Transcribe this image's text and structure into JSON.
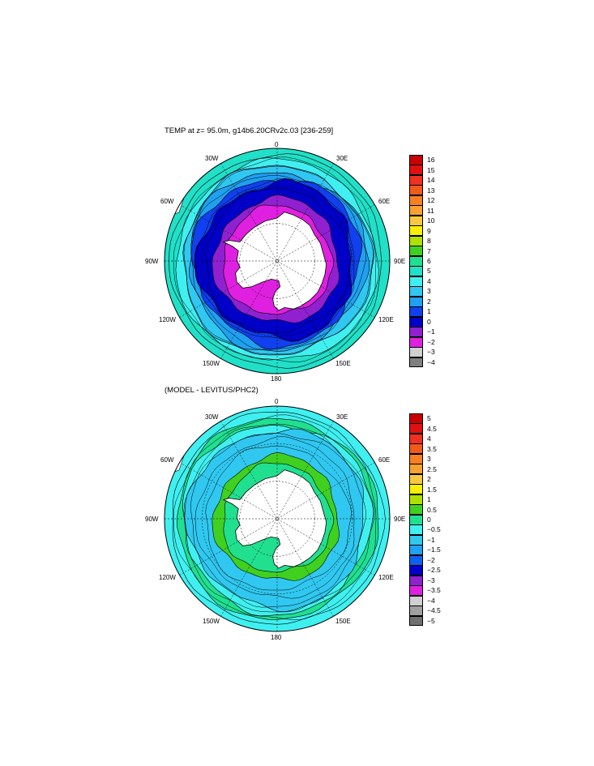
{
  "panels": [
    {
      "title": "TEMP at z=  95.0m, g14b6.20CRv2c.03 [236-259]",
      "lon_labels": {
        "top": "0",
        "bottom": "180",
        "left": "90W",
        "right": "90E",
        "upper_left_1": "30W",
        "upper_left_2": "60W",
        "lower_left_1": "120W",
        "lower_left_2": "150W",
        "upper_right_1": "30E",
        "upper_right_2": "60E",
        "lower_right_1": "120E",
        "lower_right_2": "150E"
      },
      "colorbar": {
        "labels": [
          "16",
          "15",
          "14",
          "13",
          "12",
          "11",
          "10",
          "9",
          "8",
          "7",
          "6",
          "5",
          "4",
          "3",
          "2",
          "1",
          "0",
          "−1",
          "−2",
          "−3",
          "−4"
        ],
        "colors": [
          "#c80000",
          "#e01010",
          "#f03020",
          "#f05a1a",
          "#f88020",
          "#f8a030",
          "#f8c840",
          "#f8f000",
          "#b0e000",
          "#40d020",
          "#20e090",
          "#20e0c8",
          "#40f0f0",
          "#30c8f0",
          "#20a0f0",
          "#1040f0",
          "#0000c8",
          "#9020d0",
          "#e020e0",
          "#d0d0d0",
          "#808080"
        ],
        "range": [
          -4,
          16
        ]
      },
      "ring_colors": [
        "#0000c8",
        "#1040f0",
        "#20a0f0",
        "#30c8f0",
        "#40f0f0",
        "#20e0c8"
      ],
      "inner_color": "#e020e0",
      "band_color": "#9020d0"
    },
    {
      "title": "(MODEL - LEVITUS/PHC2)",
      "lon_labels": {
        "top": "0",
        "bottom": "180",
        "left": "90W",
        "right": "90E",
        "upper_left_1": "30W",
        "upper_left_2": "60W",
        "lower_left_1": "120W",
        "lower_left_2": "150W",
        "upper_right_1": "30E",
        "upper_right_2": "60E",
        "lower_right_1": "120E",
        "lower_right_2": "150E"
      },
      "colorbar": {
        "labels": [
          "5",
          "4.5",
          "4",
          "3.5",
          "3",
          "2.5",
          "2",
          "1.5",
          "1",
          "0.5",
          "0",
          "−0.5",
          "−1",
          "−1.5",
          "−2",
          "−2.5",
          "−3",
          "−3.5",
          "−4",
          "−4.5",
          "−5"
        ],
        "colors": [
          "#c80000",
          "#e01010",
          "#f03020",
          "#f05a1a",
          "#f88020",
          "#f8a030",
          "#f8c840",
          "#f8f000",
          "#b0e000",
          "#40d020",
          "#20e090",
          "#40f0f0",
          "#30c8f0",
          "#20a0f0",
          "#1060f0",
          "#0000c8",
          "#9020d0",
          "#e020e0",
          "#d0d0d0",
          "#a0a0a0",
          "#707070"
        ],
        "range": [
          -5,
          5
        ]
      },
      "ring_colors": [
        "#30c8f0",
        "#40f0f0",
        "#20e090",
        "#40f0f0"
      ],
      "inner_color": "#20e090",
      "band_color": "#40d020"
    }
  ]
}
